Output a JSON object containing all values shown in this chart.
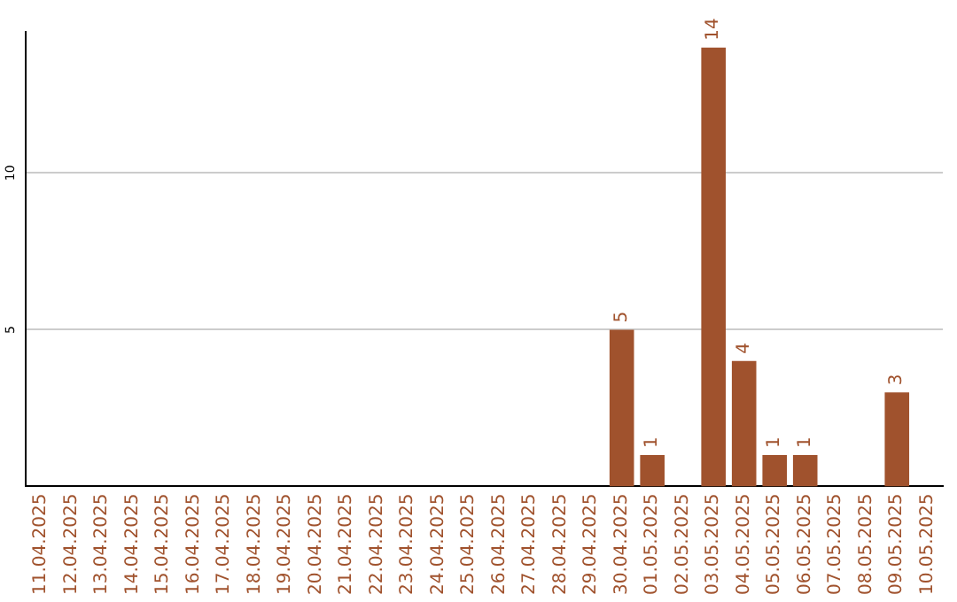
{
  "chart_data": {
    "type": "bar",
    "categories": [
      "11.04.2025",
      "12.04.2025",
      "13.04.2025",
      "14.04.2025",
      "15.04.2025",
      "16.04.2025",
      "17.04.2025",
      "18.04.2025",
      "19.04.2025",
      "20.04.2025",
      "21.04.2025",
      "22.04.2025",
      "23.04.2025",
      "24.04.2025",
      "25.04.2025",
      "26.04.2025",
      "27.04.2025",
      "28.04.2025",
      "29.04.2025",
      "30.04.2025",
      "01.05.2025",
      "02.05.2025",
      "03.05.2025",
      "04.05.2025",
      "05.05.2025",
      "06.05.2025",
      "07.05.2025",
      "08.05.2025",
      "09.05.2025",
      "10.05.2025"
    ],
    "values": [
      null,
      null,
      null,
      null,
      null,
      null,
      null,
      null,
      null,
      null,
      null,
      null,
      null,
      null,
      null,
      null,
      null,
      null,
      null,
      5,
      1,
      null,
      14,
      4,
      1,
      1,
      null,
      null,
      3,
      null
    ],
    "color": "#a0522d",
    "ylim": [
      0,
      14.5
    ],
    "yticks": [
      5,
      10
    ],
    "grid": "y",
    "data_labels": true,
    "legend": false
  }
}
